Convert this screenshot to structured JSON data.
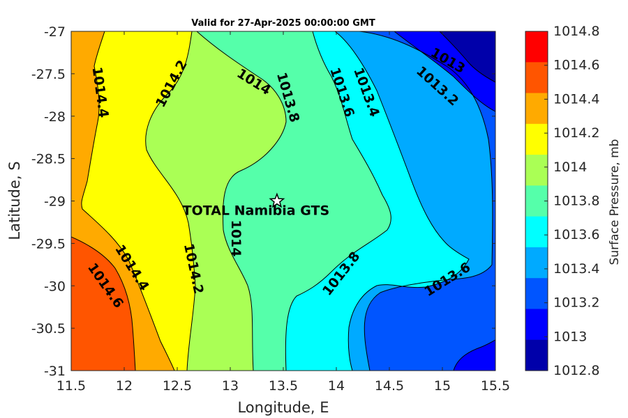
{
  "chart_data": {
    "type": "contour",
    "title": "Valid for 27-Apr-2025 00:00:00 GMT",
    "xlabel": "Longitude, E",
    "ylabel": "Latitude, S",
    "xlim": [
      11.5,
      15.5
    ],
    "ylim": [
      -31,
      -27
    ],
    "x_ticks": [
      "11.5",
      "12",
      "12.5",
      "13",
      "13.5",
      "14",
      "14.5",
      "15",
      "15.5"
    ],
    "y_ticks": [
      "-27",
      "-27.5",
      "-28",
      "-28.5",
      "-29",
      "-29.5",
      "-30",
      "-30.5",
      "-31"
    ],
    "colorbar": {
      "label": "Surface Pressure, mb",
      "levels": [
        {
          "label": "1014.8",
          "color": "#ff0000"
        },
        {
          "label": "1014.6",
          "color": "#ff5500"
        },
        {
          "label": "1014.4",
          "color": "#ffaa00"
        },
        {
          "label": "1014.2",
          "color": "#ffff00"
        },
        {
          "label": "1014",
          "color": "#aaff55"
        },
        {
          "label": "1013.8",
          "color": "#55ffaa"
        },
        {
          "label": "1013.6",
          "color": "#00ffff"
        },
        {
          "label": "1013.4",
          "color": "#00aaff"
        },
        {
          "label": "1013.2",
          "color": "#0055ff"
        },
        {
          "label": "1013",
          "color": "#0000ff"
        },
        {
          "label": "1012.8",
          "color": "#0000aa"
        }
      ],
      "range": [
        1012.8,
        1014.8
      ]
    },
    "contour_labels": [
      {
        "text": "1014.4",
        "lon": 11.77,
        "lat": -27.72,
        "angle": 82
      },
      {
        "text": "1014.2",
        "lon": 12.45,
        "lat": -27.62,
        "angle": -62
      },
      {
        "text": "1014",
        "lon": 13.22,
        "lat": -27.6,
        "angle": 32
      },
      {
        "text": "1013.8",
        "lon": 13.54,
        "lat": -27.78,
        "angle": 74
      },
      {
        "text": "1013.6",
        "lon": 14.05,
        "lat": -27.72,
        "angle": 72
      },
      {
        "text": "1013.4",
        "lon": 14.28,
        "lat": -27.72,
        "angle": 70
      },
      {
        "text": "1013.2",
        "lon": 14.95,
        "lat": -27.65,
        "angle": 42
      },
      {
        "text": "1013",
        "lon": 15.05,
        "lat": -27.35,
        "angle": 30
      },
      {
        "text": "1014.2",
        "lon": 12.65,
        "lat": -29.8,
        "angle": 78
      },
      {
        "text": "1014",
        "lon": 13.05,
        "lat": -29.44,
        "angle": 90
      },
      {
        "text": "1014.4",
        "lon": 12.07,
        "lat": -29.79,
        "angle": 58
      },
      {
        "text": "1014.6",
        "lon": 11.82,
        "lat": -30.0,
        "angle": 55
      },
      {
        "text": "1013.8",
        "lon": 14.05,
        "lat": -29.86,
        "angle": -52
      },
      {
        "text": "1013.6",
        "lon": 15.05,
        "lat": -29.93,
        "angle": -32
      }
    ],
    "site": {
      "name": "TOTAL Namibia GTS",
      "lon": 13.44,
      "lat": -29.0
    }
  }
}
